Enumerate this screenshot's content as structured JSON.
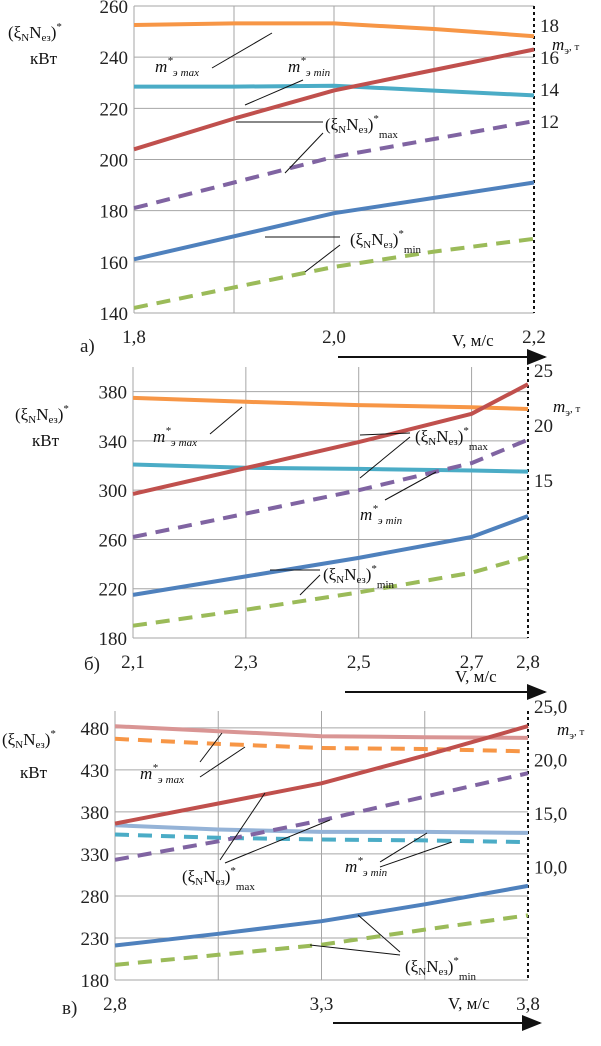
{
  "labels": {
    "y_left_pre": "(ξ",
    "y_left_nsub": "N",
    "y_left_n": "N",
    "y_left_ezsub": "eз",
    "y_left_post": ")",
    "y_left_star": "*",
    "y_left_unit": "кВт",
    "y_right_m": "m",
    "y_right_sub": "э",
    "y_right_unit": ", т",
    "x_axis": "V, м/с",
    "m_max": "max",
    "m_min": "min",
    "m_star": "*",
    "xi_max": "max",
    "xi_min": "min"
  },
  "colors": {
    "xi_max": "#c0504d",
    "xi_max_dashed": "#8064a2",
    "xi_min": "#4f81bd",
    "xi_min_dashed": "#9bbb59",
    "m_max": "#f79646",
    "m_min": "#4bacc6",
    "m_max_alt": "#d99594",
    "m_min_alt": "#95b3d7",
    "grid": "#a6a6a6"
  },
  "chart_data": [
    {
      "type": "line",
      "panel_label": "а)",
      "xlabel": "V, м/с",
      "ylabel": "(ξNNeз)*, кВт",
      "y2label": "mэ, т",
      "xlim": [
        1.8,
        2.2
      ],
      "ylim": [
        140,
        260
      ],
      "x_grid": [
        1.8,
        1.9,
        2.0,
        2.1,
        2.2
      ],
      "x_tick_labels": [
        {
          "v": 1.8,
          "t": "1,8"
        },
        {
          "v": 2.0,
          "t": "2,0"
        },
        {
          "v": 2.2,
          "t": "2,2"
        }
      ],
      "y_ticks": [
        140,
        160,
        180,
        200,
        220,
        240,
        260
      ],
      "y2_ticks": [
        {
          "v": 18,
          "t": "18"
        },
        {
          "v": 16,
          "t": "16"
        },
        {
          "v": 14,
          "t": "14"
        },
        {
          "v": 12,
          "t": "12"
        }
      ],
      "grid": true,
      "x": [
        1.8,
        1.9,
        2.0,
        2.1,
        2.2
      ],
      "series": [
        {
          "key": "m_max",
          "axis": "right",
          "dashed": false,
          "values": [
            18.0,
            18.1,
            18.1,
            17.75,
            17.3
          ]
        },
        {
          "key": "m_min",
          "axis": "right",
          "dashed": false,
          "values": [
            14.15,
            14.15,
            14.2,
            13.9,
            13.6
          ]
        },
        {
          "key": "xi_max",
          "axis": "left",
          "dashed": false,
          "values": [
            204,
            216,
            227,
            235,
            243
          ]
        },
        {
          "key": "xi_max_dashed",
          "axis": "left",
          "dashed": true,
          "values": [
            181,
            191,
            201,
            208,
            215
          ]
        },
        {
          "key": "xi_min",
          "axis": "left",
          "dashed": false,
          "values": [
            161,
            170,
            179,
            185,
            191
          ]
        },
        {
          "key": "xi_min_dashed",
          "axis": "left",
          "dashed": true,
          "values": [
            142,
            150,
            158,
            164,
            169
          ]
        }
      ]
    },
    {
      "type": "line",
      "panel_label": "б)",
      "xlabel": "V, м/с",
      "ylabel": "(ξNNeз)*, кВт",
      "y2label": "mэ, т",
      "xlim": [
        2.1,
        2.8
      ],
      "ylim": [
        180,
        400
      ],
      "x_grid": [
        2.1,
        2.3,
        2.5,
        2.7,
        2.8
      ],
      "x_tick_labels": [
        {
          "v": 2.1,
          "t": "2,1"
        },
        {
          "v": 2.3,
          "t": "2,3"
        },
        {
          "v": 2.5,
          "t": "2,5"
        },
        {
          "v": 2.7,
          "t": "2,7"
        },
        {
          "v": 2.8,
          "t": "2,8"
        }
      ],
      "y_ticks": [
        180,
        220,
        260,
        300,
        340,
        380
      ],
      "y2_ticks": [
        {
          "v": 25,
          "t": "25"
        },
        {
          "v": 20,
          "t": "20"
        },
        {
          "v": 15,
          "t": "15"
        }
      ],
      "grid": true,
      "x": [
        2.1,
        2.3,
        2.5,
        2.7,
        2.8
      ],
      "series": [
        {
          "key": "m_max",
          "axis": "right",
          "dashed": false,
          "values": [
            22.46,
            22.1,
            21.8,
            21.6,
            21.45
          ]
        },
        {
          "key": "m_min",
          "axis": "right",
          "dashed": false,
          "values": [
            16.4,
            16.1,
            16.0,
            15.85,
            15.75
          ]
        },
        {
          "key": "xi_max",
          "axis": "left",
          "dashed": false,
          "values": [
            297,
            318,
            339,
            362,
            386
          ]
        },
        {
          "key": "xi_max_dashed",
          "axis": "left",
          "dashed": true,
          "values": [
            262,
            281,
            300,
            322,
            341
          ]
        },
        {
          "key": "xi_min",
          "axis": "left",
          "dashed": false,
          "values": [
            215,
            230,
            245,
            262,
            279
          ]
        },
        {
          "key": "xi_min_dashed",
          "axis": "left",
          "dashed": true,
          "values": [
            190,
            203,
            217,
            233,
            246
          ]
        }
      ]
    },
    {
      "type": "line",
      "panel_label": "в)",
      "xlabel": "V, м/с",
      "ylabel": "(ξNNeз)*, кВт",
      "y2label": "mэ, т",
      "xlim": [
        2.8,
        3.8
      ],
      "ylim": [
        180,
        500
      ],
      "x_grid": [
        2.8,
        3.05,
        3.3,
        3.55,
        3.8
      ],
      "x_tick_labels": [
        {
          "v": 2.8,
          "t": "2,8"
        },
        {
          "v": 3.3,
          "t": "3,3"
        },
        {
          "v": 3.8,
          "t": "3,8"
        }
      ],
      "y_ticks": [
        180,
        230,
        280,
        330,
        380,
        430,
        480
      ],
      "y2_ticks": [
        {
          "v": 25,
          "t": "25,0"
        },
        {
          "v": 20,
          "t": "20,0"
        },
        {
          "v": 15,
          "t": "15,0"
        },
        {
          "v": 10,
          "t": "10,0"
        }
      ],
      "grid": true,
      "x": [
        2.8,
        3.05,
        3.3,
        3.55,
        3.8
      ],
      "series": [
        {
          "key": "m_max_alt",
          "axis": "right",
          "dashed": false,
          "values": [
            23.13,
            22.66,
            22.19,
            22.1,
            22.03
          ]
        },
        {
          "key": "m_max",
          "axis": "right",
          "dashed": true,
          "values": [
            21.95,
            21.47,
            21.09,
            21.0,
            20.77
          ]
        },
        {
          "key": "m_min_alt",
          "axis": "right",
          "dashed": false,
          "values": [
            13.87,
            13.47,
            13.24,
            13.24,
            13.15
          ]
        },
        {
          "key": "m_min",
          "axis": "right",
          "dashed": true,
          "values": [
            13.0,
            12.69,
            12.53,
            12.45,
            12.29
          ]
        },
        {
          "key": "xi_max",
          "axis": "left",
          "dashed": false,
          "values": [
            366,
            390,
            414,
            447,
            482
          ]
        },
        {
          "key": "xi_max_dashed",
          "axis": "left",
          "dashed": true,
          "values": [
            323,
            345,
            370,
            398,
            426
          ]
        },
        {
          "key": "xi_min",
          "axis": "left",
          "dashed": false,
          "values": [
            221,
            235,
            250,
            270,
            292
          ]
        },
        {
          "key": "xi_min_dashed",
          "axis": "left",
          "dashed": true,
          "values": [
            198,
            210,
            222,
            240,
            257
          ]
        }
      ]
    }
  ]
}
